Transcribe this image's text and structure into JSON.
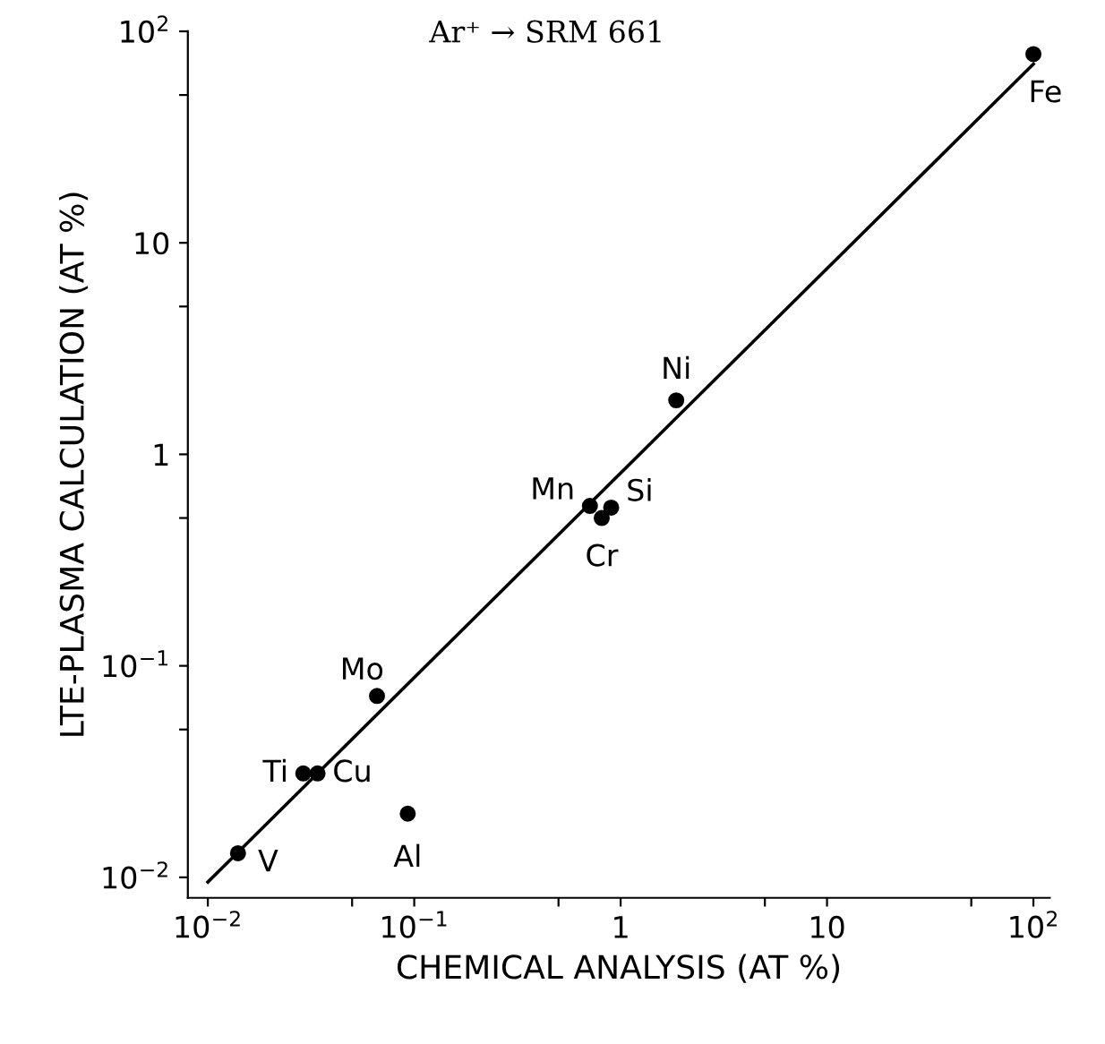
{
  "chart_data": {
    "type": "scatter",
    "title": "Ar⁺ → SRM 661",
    "xlabel": "CHEMICAL ANALYSIS (AT %)",
    "ylabel": "LTE-PLASMA CALCULATION (AT %)",
    "log": "xy",
    "grid": false,
    "marker": "circle",
    "series": [
      {
        "color": "#000000",
        "x": [
          100,
          1.86,
          0.71,
          0.9,
          0.81,
          0.066,
          0.029,
          0.034,
          0.093,
          0.014
        ],
        "values": [
          78,
          1.8,
          0.57,
          0.56,
          0.5,
          0.072,
          0.031,
          0.031,
          0.02,
          0.013
        ]
      },
      {
        "type": "line",
        "color": "#000000",
        "marker": "none",
        "line_style": "solid",
        "x": [
          0.01,
          100
        ],
        "values": [
          0.0095,
          70
        ]
      }
    ],
    "annotations": [
      {
        "text": "Fe",
        "x": 100,
        "y": 78
      },
      {
        "text": "Ni",
        "x": 1.86,
        "y": 1.8
      },
      {
        "text": "Mn",
        "x": 0.71,
        "y": 0.57
      },
      {
        "text": "Si",
        "x": 0.9,
        "y": 0.56
      },
      {
        "text": "Cr",
        "x": 0.81,
        "y": 0.5
      },
      {
        "text": "Mo",
        "x": 0.066,
        "y": 0.072
      },
      {
        "text": "Ti",
        "x": 0.029,
        "y": 0.031
      },
      {
        "text": "Cu",
        "x": 0.034,
        "y": 0.031
      },
      {
        "text": "Al",
        "x": 0.093,
        "y": 0.02
      },
      {
        "text": "V",
        "x": 0.014,
        "y": 0.013
      }
    ],
    "xlim": [
      0.008,
      120
    ],
    "ylim": [
      0.008,
      100
    ],
    "xticks": [
      {
        "value": 0.01,
        "label": "10$^{−2}$"
      },
      {
        "value": 0.05,
        "label": null
      },
      {
        "value": 0.1,
        "label": "10$^{−1}$"
      },
      {
        "value": 0.5,
        "label": null
      },
      {
        "value": 1,
        "label": "1"
      },
      {
        "value": 5,
        "label": null
      },
      {
        "value": 10,
        "label": "10"
      },
      {
        "value": 50,
        "label": null
      },
      {
        "value": 100,
        "label": "10$^{2}$"
      }
    ],
    "yticks": [
      {
        "value": 0.01,
        "label": "10$^{−2}$"
      },
      {
        "value": 0.05,
        "label": null
      },
      {
        "value": 0.1,
        "label": "10$^{−1}$"
      },
      {
        "value": 0.5,
        "label": null
      },
      {
        "value": 1,
        "label": "1"
      },
      {
        "value": 5,
        "label": null
      },
      {
        "value": 10,
        "label": "10"
      },
      {
        "value": 50,
        "label": null
      },
      {
        "value": 100,
        "label": "10$^{2}$"
      }
    ]
  }
}
